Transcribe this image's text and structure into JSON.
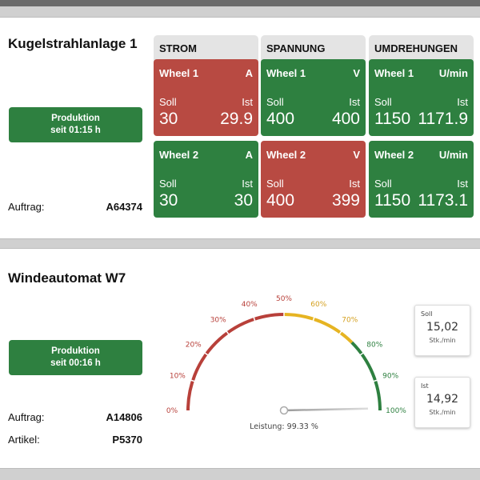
{
  "machines": [
    {
      "title": "Kugelstrahlanlage 1",
      "status": {
        "line1": "Produktion",
        "line2": "seit 01:15 h",
        "color": "#2e8040"
      },
      "info": [
        {
          "label": "Auftrag:",
          "value": "A64374"
        }
      ],
      "columns": [
        {
          "header": "STROM",
          "tiles": [
            {
              "name": "Wheel 1",
              "unit": "A",
              "soll_label": "Soll",
              "ist_label": "Ist",
              "soll": "30",
              "ist": "29.9",
              "state": "red"
            },
            {
              "name": "Wheel 2",
              "unit": "A",
              "soll_label": "Soll",
              "ist_label": "Ist",
              "soll": "30",
              "ist": "30",
              "state": "green"
            }
          ]
        },
        {
          "header": "SPANNUNG",
          "tiles": [
            {
              "name": "Wheel 1",
              "unit": "V",
              "soll_label": "Soll",
              "ist_label": "Ist",
              "soll": "400",
              "ist": "400",
              "state": "green"
            },
            {
              "name": "Wheel 2",
              "unit": "V",
              "soll_label": "Soll",
              "ist_label": "Ist",
              "soll": "400",
              "ist": "399",
              "state": "red"
            }
          ]
        },
        {
          "header": "UMDREHUNGEN",
          "tiles": [
            {
              "name": "Wheel 1",
              "unit": "U/min",
              "soll_label": "Soll",
              "ist_label": "Ist",
              "soll": "1150",
              "ist": "1171.9",
              "state": "green"
            },
            {
              "name": "Wheel 2",
              "unit": "U/min",
              "soll_label": "Soll",
              "ist_label": "Ist",
              "soll": "1150",
              "ist": "1173.1",
              "state": "green"
            }
          ]
        }
      ]
    },
    {
      "title": "Windeautomat W7",
      "status": {
        "line1": "Produktion",
        "line2": "seit 00:16 h",
        "color": "#2e8040"
      },
      "info": [
        {
          "label": "Auftrag:",
          "value": "A14806"
        },
        {
          "label": "Artikel:",
          "value": "P5370"
        }
      ],
      "gauge": {
        "caption": "Leistung: 99.33 %",
        "value": 99.33,
        "ticks": [
          "0%",
          "10%",
          "20%",
          "30%",
          "40%",
          "50%",
          "60%",
          "70%",
          "80%",
          "90%",
          "100%"
        ],
        "bands": [
          {
            "from": 0,
            "to": 50,
            "color": "#b8403a"
          },
          {
            "from": 50,
            "to": 75,
            "color": "#e6b422"
          },
          {
            "from": 75,
            "to": 100,
            "color": "#2e8040"
          }
        ]
      },
      "kpis": [
        {
          "label": "Soll",
          "value": "15,02",
          "unit": "Stk./min"
        },
        {
          "label": "Ist",
          "value": "14,92",
          "unit": "Stk./min"
        }
      ]
    }
  ]
}
